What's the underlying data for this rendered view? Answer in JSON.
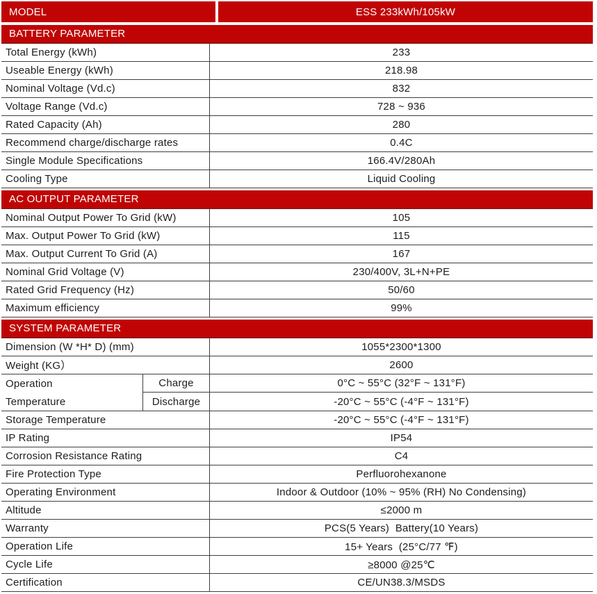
{
  "colors": {
    "band_red": "#c00404",
    "band_dark_red": "#8e1616",
    "grid_line": "#3f3f3f",
    "text": "#1d1d1d"
  },
  "model": {
    "label": "MODEL",
    "value": "ESS 233kWh/105kW"
  },
  "battery": {
    "title": "BATTERY PARAMETER",
    "rows": [
      {
        "label": "Total Energy (kWh)",
        "value": "233"
      },
      {
        "label": "Useable Energy (kWh)",
        "value": "218.98"
      },
      {
        "label": "Nominal Voltage (Vd.c)",
        "value": "832"
      },
      {
        "label": "Voltage Range (Vd.c)",
        "value": "728 ~ 936"
      },
      {
        "label": "Rated Capacity (Ah)",
        "value": "280"
      },
      {
        "label": "Recommend charge/discharge rates",
        "value": "0.4C"
      },
      {
        "label": "Single Module Specifications",
        "value": "166.4V/280Ah"
      },
      {
        "label": "Cooling Type",
        "value": "Liquid Cooling"
      }
    ]
  },
  "ac": {
    "title": "AC OUTPUT PARAMETER",
    "rows": [
      {
        "label": "Nominal Output Power To Grid (kW)",
        "value": "105"
      },
      {
        "label": "Max. Output Power To Grid (kW)",
        "value": "115"
      },
      {
        "label": "Max. Output Current To Grid (A)",
        "value": "167"
      },
      {
        "label": "Nominal Grid Voltage (V)",
        "value": "230/400V, 3L+N+PE"
      },
      {
        "label": "Rated Grid Frequency (Hz)",
        "value": "50/60"
      },
      {
        "label": "Maximum efficiency",
        "value": "99%"
      }
    ]
  },
  "system": {
    "title": "SYSTEM PARAMETER",
    "rows_top": [
      {
        "label": "Dimension (W *H* D) (mm)",
        "value": "1055*2300*1300"
      },
      {
        "label": "Weight (KG）",
        "value": "2600"
      }
    ],
    "operation_temperature": {
      "label_line1": "Operation",
      "label_line2": "Temperature",
      "charge": {
        "label": "Charge",
        "value": "0°C ~ 55°C (32°F ~ 131°F)"
      },
      "discharge": {
        "label": "Discharge",
        "value": "-20°C ~ 55°C (-4°F ~ 131°F)"
      }
    },
    "rows_bottom": [
      {
        "label": "Storage Temperature",
        "value": "-20°C ~ 55°C (-4°F ~ 131°F)"
      },
      {
        "label": "IP Rating",
        "value": "IP54"
      },
      {
        "label": "Corrosion Resistance Rating",
        "value": "C4"
      },
      {
        "label": "Fire Protection Type",
        "value": "Perfluorohexanone"
      },
      {
        "label": "Operating Environment",
        "value": "Indoor & Outdoor (10% ~ 95% (RH) No Condensing)"
      },
      {
        "label": "Altitude",
        "value": "≤2000 m"
      },
      {
        "label": "Warranty",
        "value": "PCS(5 Years)  Battery(10 Years)"
      },
      {
        "label": "Operation Life",
        "value": "15+ Years  (25°C/77 ℉)"
      },
      {
        "label": "Cycle Life",
        "value": "≥8000 @25℃"
      },
      {
        "label": "Certification",
        "value": "CE/UN38.3/MSDS"
      }
    ]
  }
}
